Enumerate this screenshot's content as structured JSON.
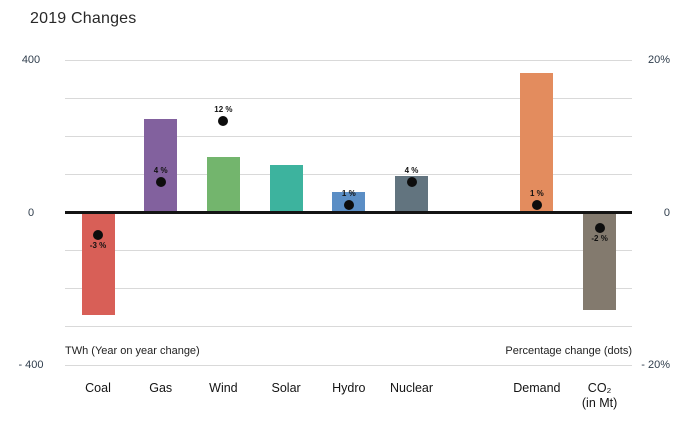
{
  "title": "2019 Changes",
  "chart_data": {
    "type": "bar",
    "title": "2019 Changes",
    "left_axis": {
      "label": "TWh (Year on year change)",
      "range": [
        -400,
        400
      ],
      "ticks": [
        {
          "value": 400,
          "label": "400"
        },
        {
          "value": 0,
          "label": "0"
        },
        {
          "value": -400,
          "label": "- 400"
        }
      ]
    },
    "right_axis": {
      "label": "Percentage change (dots)",
      "range": [
        -20,
        20
      ],
      "ticks": [
        {
          "value": 20,
          "label": "20%"
        },
        {
          "value": 0,
          "label": "0"
        },
        {
          "value": -20,
          "label": "- 20%"
        }
      ]
    },
    "gridline_step_twh": 100,
    "grid_color": "#d9d9d9",
    "zero_line_color": "#141414",
    "dot_color": "#0d0d0d",
    "bars": [
      {
        "category": "Coal",
        "twh": -270,
        "pct": -3,
        "pct_label": "-3 %",
        "color": "#d85f57",
        "gap_before": false
      },
      {
        "category": "Gas",
        "twh": 245,
        "pct": 4,
        "pct_label": "4 %",
        "color": "#82619e",
        "gap_before": false
      },
      {
        "category": "Wind",
        "twh": 145,
        "pct": 12,
        "pct_label": "12 %",
        "color": "#73b56d",
        "gap_before": false
      },
      {
        "category": "Solar",
        "twh": 125,
        "pct": null,
        "pct_label": null,
        "color": "#3db39e",
        "gap_before": false
      },
      {
        "category": "Hydro",
        "twh": 55,
        "pct": 1,
        "pct_label": "1 %",
        "color": "#5b8ec5",
        "gap_before": false
      },
      {
        "category": "Nuclear",
        "twh": 95,
        "pct": 4,
        "pct_label": "4 %",
        "color": "#62747f",
        "gap_before": false
      },
      {
        "category": "Demand",
        "twh": 365,
        "pct": 1,
        "pct_label": "1 %",
        "color": "#e38c5e",
        "gap_before": true
      },
      {
        "category": "CO₂",
        "sublabel": "(in Mt)",
        "twh": -255,
        "pct": -2,
        "pct_label": "-2 %",
        "color": "#837a6e",
        "gap_before": false
      }
    ]
  }
}
